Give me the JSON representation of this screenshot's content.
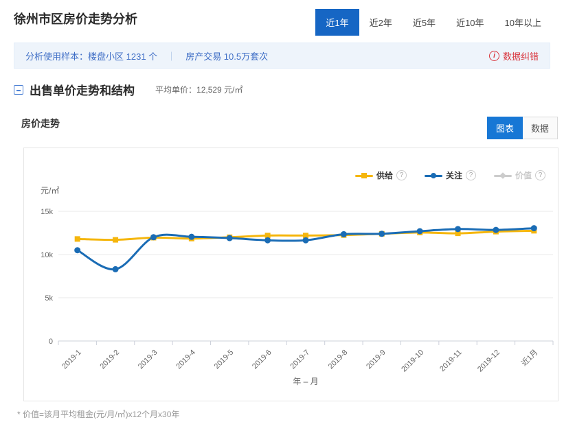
{
  "page": {
    "title": "徐州市区房价走势分析"
  },
  "icons": {
    "help": "?",
    "info": "i"
  },
  "time_tabs": [
    {
      "label": "近1年",
      "active": true
    },
    {
      "label": "近2年",
      "active": false
    },
    {
      "label": "近5年",
      "active": false
    },
    {
      "label": "近10年",
      "active": false
    },
    {
      "label": "10年以上",
      "active": false
    }
  ],
  "sample_bar": {
    "prefix": "分析使用样本：",
    "sample1": "楼盘小区 1231 个",
    "separator": "｜",
    "sample2": "房产交易 10.5万套次",
    "correction_label": "数据纠错"
  },
  "section": {
    "title": "出售单价走势和结构",
    "avg_label": "平均单价：",
    "avg_value": "12,529 元/㎡"
  },
  "chart_header": {
    "title": "房价走势",
    "view_tabs": [
      {
        "label": "图表",
        "active": true
      },
      {
        "label": "数据",
        "active": false
      }
    ]
  },
  "chart_data": {
    "type": "line",
    "unit_label": "元/㎡",
    "xlabel": "年 – 月",
    "categories": [
      "2019-1",
      "2019-2",
      "2019-3",
      "2019-4",
      "2019-5",
      "2019-6",
      "2019-7",
      "2019-8",
      "2019-9",
      "2019-10",
      "2019-11",
      "2019-12",
      "近1月"
    ],
    "series": [
      {
        "name": "供给",
        "color": "#F5B60D",
        "marker": "square",
        "values": [
          11800,
          11700,
          11950,
          11850,
          12000,
          12200,
          12200,
          12250,
          12400,
          12550,
          12450,
          12650,
          12750
        ]
      },
      {
        "name": "关注",
        "color": "#1A6CB5",
        "marker": "circle",
        "values": [
          10500,
          8300,
          12000,
          12050,
          11900,
          11650,
          11650,
          12350,
          12400,
          12700,
          12950,
          12850,
          13050
        ]
      },
      {
        "name": "价值",
        "color": "#CCCCCC",
        "marker": "diamond",
        "values": null,
        "disabled": true
      }
    ],
    "ylim": [
      0,
      15000
    ],
    "ytick_values": [
      0,
      5000,
      10000,
      15000
    ],
    "ytick_labels": [
      "0",
      "5k",
      "10k",
      "15k"
    ],
    "legend_position": "top-right",
    "grid": true
  },
  "footnote": "* 价值=该月平均租金(元/月/㎡)x12个月x30年",
  "colors": {
    "accent_blue": "#1666C4",
    "button_blue": "#1777D5",
    "supply_yellow": "#F5B60D",
    "attention_blue": "#1A6CB5",
    "disabled_gray": "#CCCCCC",
    "error_red": "#D9363E",
    "info_bar_bg": "#EEF4FB",
    "info_bar_text": "#3F6EC6"
  }
}
